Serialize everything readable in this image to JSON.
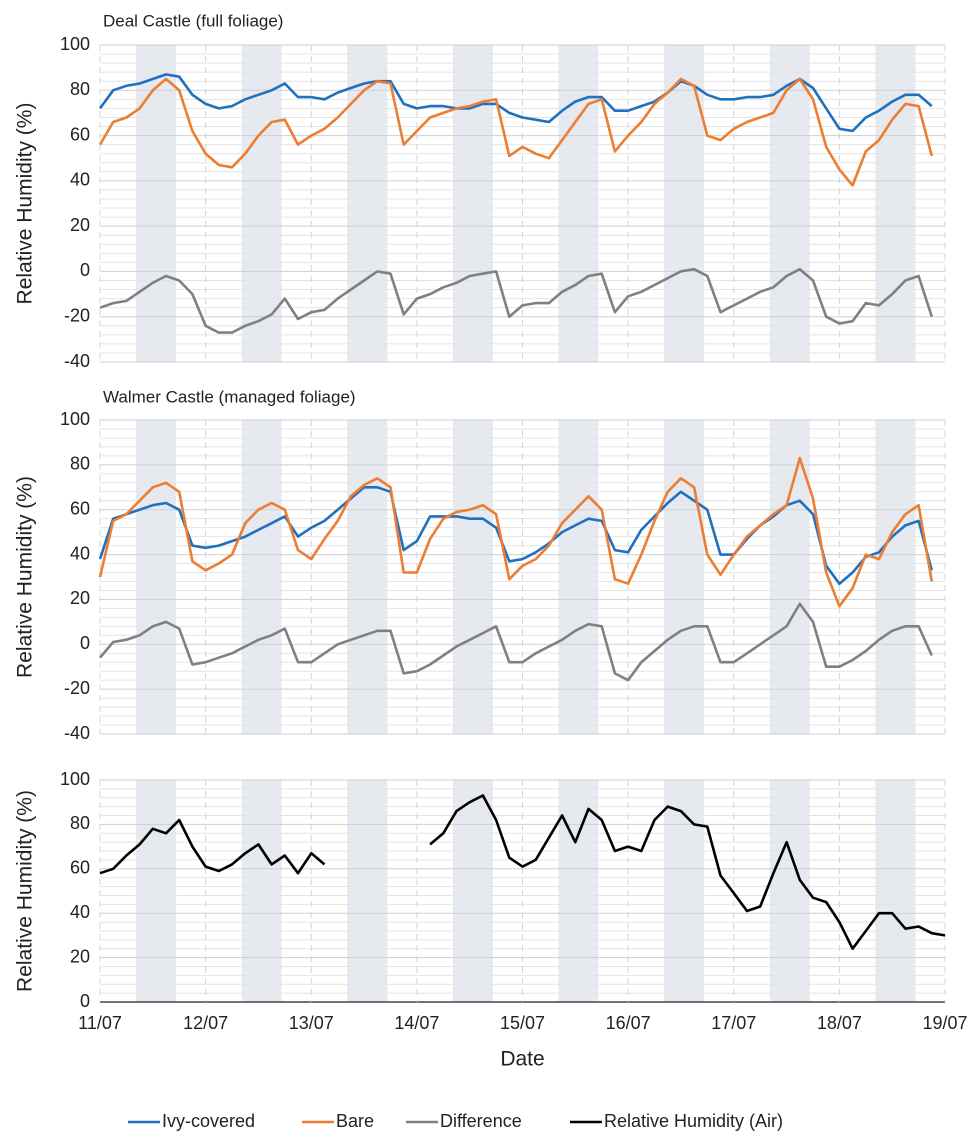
{
  "chart_data": [
    {
      "type": "line",
      "title": "Deal Castle (full foliage)",
      "ylabel": "Relative Humidity (%)",
      "xlim": [
        11,
        19
      ],
      "xticks": [
        11,
        12,
        13,
        14,
        15,
        16,
        17,
        18,
        19
      ],
      "ylim": [
        -40,
        100
      ],
      "yticks": [
        -40,
        -20,
        0,
        20,
        40,
        60,
        80,
        100
      ],
      "grid": true,
      "minor_grid": true,
      "shaded_spans": [
        [
          11.34,
          11.72
        ],
        [
          12.34,
          12.72
        ],
        [
          13.34,
          13.72
        ],
        [
          14.34,
          14.72
        ],
        [
          15.34,
          15.72
        ],
        [
          16.34,
          16.72
        ],
        [
          17.34,
          17.72
        ],
        [
          18.34,
          18.72
        ]
      ],
      "x": [
        11,
        11.125,
        11.25,
        11.375,
        11.5,
        11.625,
        11.75,
        11.875,
        12,
        12.125,
        12.25,
        12.375,
        12.5,
        12.625,
        12.75,
        12.875,
        13,
        13.125,
        13.25,
        13.375,
        13.5,
        13.625,
        13.75,
        13.875,
        14,
        14.125,
        14.25,
        14.375,
        14.5,
        14.625,
        14.75,
        14.875,
        15,
        15.125,
        15.25,
        15.375,
        15.5,
        15.625,
        15.75,
        15.875,
        16,
        16.125,
        16.25,
        16.375,
        16.5,
        16.625,
        16.75,
        16.875,
        17,
        17.125,
        17.25,
        17.375,
        17.5,
        17.625,
        17.75,
        17.875,
        18,
        18.125,
        18.25,
        18.375,
        18.5,
        18.625,
        18.75,
        18.875
      ],
      "series": [
        {
          "name": "Ivy-covered",
          "color": "#1f70bf",
          "values": [
            72,
            80,
            82,
            83,
            85,
            87,
            86,
            78,
            74,
            72,
            73,
            76,
            78,
            80,
            83,
            77,
            77,
            76,
            79,
            81,
            83,
            84,
            84,
            74,
            72,
            73,
            73,
            72,
            72,
            74,
            74,
            70,
            68,
            67,
            66,
            71,
            75,
            77,
            77,
            71,
            71,
            73,
            75,
            79,
            84,
            82,
            78,
            76,
            76,
            77,
            77,
            78,
            82,
            85,
            81,
            72,
            63,
            62,
            68,
            71,
            75,
            78,
            78,
            73
          ]
        },
        {
          "name": "Bare",
          "color": "#ed7d31",
          "values": [
            56,
            66,
            68,
            72,
            80,
            85,
            80,
            62,
            52,
            47,
            46,
            52,
            60,
            66,
            67,
            56,
            60,
            63,
            68,
            74,
            80,
            84,
            83,
            56,
            62,
            68,
            70,
            72,
            73,
            75,
            76,
            51,
            55,
            52,
            50,
            58,
            66,
            74,
            76,
            53,
            60,
            66,
            74,
            79,
            85,
            82,
            60,
            58,
            63,
            66,
            68,
            70,
            80,
            85,
            76,
            55,
            45,
            38,
            53,
            58,
            67,
            74,
            73,
            51
          ]
        },
        {
          "name": "Difference",
          "color": "#808080",
          "values": [
            -16,
            -14,
            -13,
            -9,
            -5,
            -2,
            -4,
            -10,
            -24,
            -27,
            -27,
            -24,
            -22,
            -19,
            -12,
            -21,
            -18,
            -17,
            -12,
            -8,
            -4,
            0,
            -1,
            -19,
            -12,
            -10,
            -7,
            -5,
            -2,
            -1,
            0,
            -20,
            -15,
            -14,
            -14,
            -9,
            -6,
            -2,
            -1,
            -18,
            -11,
            -9,
            -6,
            -3,
            0,
            1,
            -2,
            -18,
            -15,
            -12,
            -9,
            -7,
            -2,
            1,
            -4,
            -20,
            -23,
            -22,
            -14,
            -15,
            -10,
            -4,
            -2,
            -20
          ]
        }
      ]
    },
    {
      "type": "line",
      "title": "Walmer Castle (managed foliage)",
      "ylabel": "Relative Humidity (%)",
      "xlim": [
        11,
        19
      ],
      "xticks": [
        11,
        12,
        13,
        14,
        15,
        16,
        17,
        18,
        19
      ],
      "ylim": [
        -40,
        100
      ],
      "yticks": [
        -40,
        -20,
        0,
        20,
        40,
        60,
        80,
        100
      ],
      "grid": true,
      "minor_grid": true,
      "shaded_spans": [
        [
          11.34,
          11.72
        ],
        [
          12.34,
          12.72
        ],
        [
          13.34,
          13.72
        ],
        [
          14.34,
          14.72
        ],
        [
          15.34,
          15.72
        ],
        [
          16.34,
          16.72
        ],
        [
          17.34,
          17.72
        ],
        [
          18.34,
          18.72
        ]
      ],
      "x": [
        11,
        11.125,
        11.25,
        11.375,
        11.5,
        11.625,
        11.75,
        11.875,
        12,
        12.125,
        12.25,
        12.375,
        12.5,
        12.625,
        12.75,
        12.875,
        13,
        13.125,
        13.25,
        13.375,
        13.5,
        13.625,
        13.75,
        13.875,
        14,
        14.125,
        14.25,
        14.375,
        14.5,
        14.625,
        14.75,
        14.875,
        15,
        15.125,
        15.25,
        15.375,
        15.5,
        15.625,
        15.75,
        15.875,
        16,
        16.125,
        16.25,
        16.375,
        16.5,
        16.625,
        16.75,
        16.875,
        17,
        17.125,
        17.25,
        17.375,
        17.5,
        17.625,
        17.75,
        17.875,
        18,
        18.125,
        18.25,
        18.375,
        18.5,
        18.625,
        18.75,
        18.875
      ],
      "series": [
        {
          "name": "Ivy-covered",
          "color": "#1f70bf",
          "values": [
            38,
            56,
            58,
            60,
            62,
            63,
            60,
            44,
            43,
            44,
            46,
            48,
            51,
            54,
            57,
            48,
            52,
            55,
            60,
            65,
            70,
            70,
            68,
            42,
            46,
            57,
            57,
            57,
            56,
            56,
            52,
            37,
            38,
            41,
            45,
            50,
            53,
            56,
            55,
            42,
            41,
            51,
            57,
            63,
            68,
            64,
            60,
            40,
            40,
            47,
            53,
            57,
            62,
            64,
            58,
            35,
            27,
            32,
            39,
            41,
            48,
            53,
            55,
            33
          ]
        },
        {
          "name": "Bare",
          "color": "#ed7d31",
          "values": [
            30,
            55,
            58,
            64,
            70,
            72,
            68,
            37,
            33,
            36,
            40,
            54,
            60,
            63,
            60,
            42,
            38,
            47,
            55,
            66,
            71,
            74,
            70,
            32,
            32,
            47,
            56,
            59,
            60,
            62,
            58,
            29,
            35,
            38,
            44,
            54,
            60,
            66,
            60,
            29,
            27,
            40,
            55,
            68,
            74,
            70,
            40,
            31,
            40,
            48,
            53,
            58,
            62,
            83,
            65,
            32,
            17,
            25,
            40,
            38,
            50,
            58,
            62,
            28
          ]
        },
        {
          "name": "Difference",
          "color": "#808080",
          "values": [
            -6,
            1,
            2,
            4,
            8,
            10,
            7,
            -9,
            -8,
            -6,
            -4,
            -1,
            2,
            4,
            7,
            -8,
            -8,
            -4,
            0,
            2,
            4,
            6,
            6,
            -13,
            -12,
            -9,
            -5,
            -1,
            2,
            5,
            8,
            -8,
            -8,
            -4,
            -1,
            2,
            6,
            9,
            8,
            -13,
            -16,
            -8,
            -3,
            2,
            6,
            8,
            8,
            -8,
            -8,
            -4,
            0,
            4,
            8,
            18,
            10,
            -10,
            -10,
            -7,
            -3,
            2,
            6,
            8,
            8,
            -5
          ]
        }
      ]
    },
    {
      "type": "line",
      "ylabel": "Relative Humidity (%)",
      "xlabel": "Date",
      "xlim": [
        11,
        19
      ],
      "xticks": [
        {
          "value": 11,
          "label": "11/07"
        },
        {
          "value": 12,
          "label": "12/07"
        },
        {
          "value": 13,
          "label": "13/07"
        },
        {
          "value": 14,
          "label": "14/07"
        },
        {
          "value": 15,
          "label": "15/07"
        },
        {
          "value": 16,
          "label": "16/07"
        },
        {
          "value": 17,
          "label": "17/07"
        },
        {
          "value": 18,
          "label": "18/07"
        },
        {
          "value": 19,
          "label": "19/07"
        }
      ],
      "ylim": [
        0,
        100
      ],
      "yticks": [
        0,
        20,
        40,
        60,
        80,
        100
      ],
      "grid": true,
      "minor_grid": true,
      "legend": "bottom",
      "shaded_spans": [
        [
          11.34,
          11.72
        ],
        [
          12.34,
          12.72
        ],
        [
          13.34,
          13.72
        ],
        [
          14.34,
          14.72
        ],
        [
          15.34,
          15.72
        ],
        [
          16.34,
          16.72
        ],
        [
          17.34,
          17.72
        ],
        [
          18.34,
          18.72
        ]
      ],
      "x": [
        11,
        11.125,
        11.25,
        11.375,
        11.5,
        11.625,
        11.75,
        11.875,
        12,
        12.125,
        12.25,
        12.375,
        12.5,
        12.625,
        12.75,
        12.875,
        13,
        13.125,
        13.25,
        13.375,
        13.5,
        13.625,
        13.75,
        13.875,
        14,
        14.125,
        14.25,
        14.375,
        14.5,
        14.625,
        14.75,
        14.875,
        15,
        15.125,
        15.25,
        15.375,
        15.5,
        15.625,
        15.75,
        15.875,
        16,
        16.125,
        16.25,
        16.375,
        16.5,
        16.625,
        16.75,
        16.875,
        17,
        17.125,
        17.25,
        17.375,
        17.5,
        17.625,
        17.75,
        17.875,
        18,
        18.125,
        18.25,
        18.375,
        18.5,
        18.625,
        18.75,
        18.875,
        19
      ],
      "series": [
        {
          "name": "Relative Humidity (Air)",
          "color": "#000000",
          "values": [
            58,
            60,
            66,
            71,
            78,
            76,
            82,
            70,
            61,
            59,
            62,
            67,
            71,
            62,
            66,
            58,
            67,
            62,
            null,
            null,
            null,
            null,
            null,
            null,
            null,
            71,
            76,
            86,
            90,
            93,
            82,
            65,
            61,
            64,
            74,
            84,
            72,
            87,
            82,
            68,
            70,
            68,
            82,
            88,
            86,
            80,
            79,
            57,
            49,
            41,
            43,
            58,
            72,
            55,
            47,
            45,
            36,
            24,
            32,
            40,
            40,
            33,
            34,
            31,
            30
          ]
        }
      ]
    }
  ]
}
